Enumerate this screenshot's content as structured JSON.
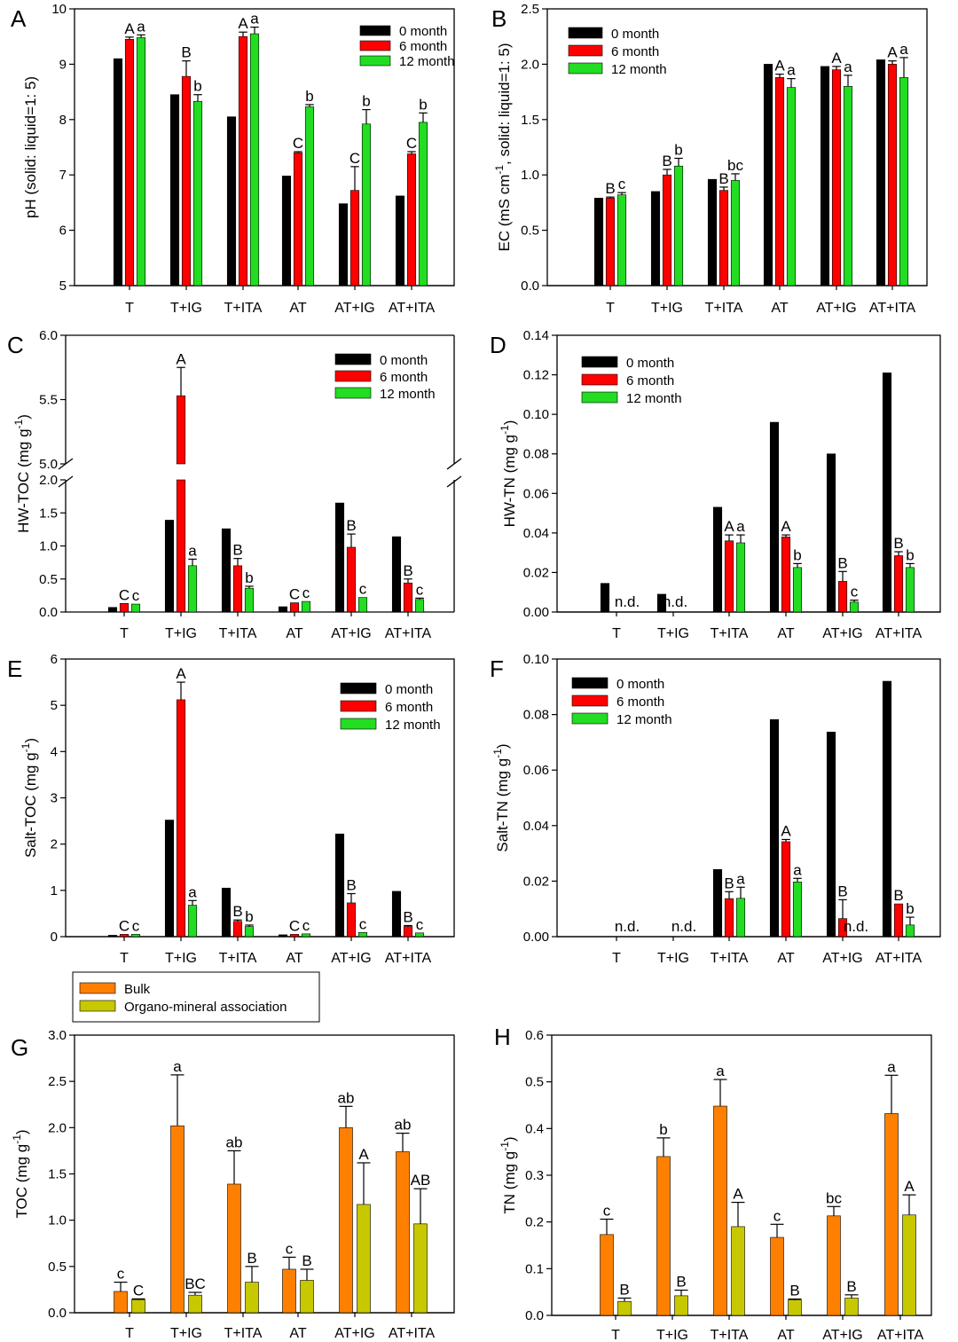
{
  "colors": {
    "month0": "#000000",
    "month6": "#ff0000",
    "month12": "#22dd22",
    "bulk": "#ff8000",
    "oma": "#c8c800"
  },
  "categories": [
    "T",
    "T+IG",
    "T+ITA",
    "AT",
    "AT+IG",
    "AT+ITA"
  ],
  "chart_data": [
    {
      "panel": "A",
      "type": "bar",
      "ylabel": "pH (solid: liquid=1: 5)",
      "ylim": [
        5,
        10
      ],
      "yticks": [
        "5",
        "6",
        "7",
        "8",
        "9",
        "10"
      ],
      "legend": [
        "0 month",
        "6 month",
        "12 month"
      ],
      "legend_position": "top-right",
      "series": [
        {
          "name": "0 month",
          "values": [
            9.1,
            8.45,
            8.05,
            6.98,
            6.48,
            6.62
          ],
          "err": [
            0,
            0,
            0,
            0,
            0,
            0
          ],
          "labels": [
            "",
            "",
            "",
            "",
            "",
            ""
          ]
        },
        {
          "name": "6 month",
          "values": [
            9.45,
            8.78,
            9.5,
            7.4,
            6.72,
            7.38
          ],
          "err": [
            0.04,
            0.28,
            0.08,
            0.02,
            0.43,
            0.04
          ],
          "labels": [
            "A",
            "B",
            "A",
            "C",
            "C",
            "C"
          ]
        },
        {
          "name": "12 month",
          "values": [
            9.48,
            8.33,
            9.55,
            8.23,
            7.92,
            7.95
          ],
          "err": [
            0.05,
            0.12,
            0.12,
            0.04,
            0.26,
            0.17
          ],
          "labels": [
            "a",
            "b",
            "a",
            "b",
            "b",
            "b"
          ]
        }
      ]
    },
    {
      "panel": "B",
      "type": "bar",
      "ylabel": "EC (mS cm-1, solid: liquid=1: 5)",
      "ylim": [
        0,
        2.5
      ],
      "yticks": [
        "0.0",
        "0.5",
        "1.0",
        "1.5",
        "2.0",
        "2.5"
      ],
      "legend": [
        "0 month",
        "6 month",
        "12 month"
      ],
      "legend_position": "top-left",
      "series": [
        {
          "name": "0 month",
          "values": [
            0.79,
            0.85,
            0.96,
            2.0,
            1.98,
            2.04
          ],
          "err": [
            0,
            0,
            0,
            0,
            0,
            0
          ],
          "labels": [
            "",
            "",
            "",
            "",
            "",
            ""
          ]
        },
        {
          "name": "6 month",
          "values": [
            0.79,
            1.0,
            0.86,
            1.88,
            1.95,
            2.0
          ],
          "err": [
            0.01,
            0.05,
            0.03,
            0.03,
            0.03,
            0.03
          ],
          "labels": [
            "B",
            "B",
            "B",
            "A",
            "A",
            "A"
          ]
        },
        {
          "name": "12 month",
          "values": [
            0.82,
            1.08,
            0.95,
            1.79,
            1.8,
            1.88
          ],
          "err": [
            0.02,
            0.07,
            0.06,
            0.08,
            0.1,
            0.18
          ],
          "labels": [
            "c",
            "b",
            "bc",
            "a",
            "a",
            "a"
          ]
        }
      ]
    },
    {
      "panel": "C",
      "type": "bar",
      "ylabel": "HW-TOC (mg g-1)",
      "ylim": [
        0,
        6.0
      ],
      "axis_break": [
        2.0,
        5.0
      ],
      "yticks_lower": [
        "0.0",
        "0.5",
        "1.0",
        "1.5",
        "2.0"
      ],
      "yticks_upper": [
        "5.0",
        "5.5",
        "6.0"
      ],
      "legend": [
        "0 month",
        "6 month",
        "12 month"
      ],
      "legend_position": "top-right",
      "series": [
        {
          "name": "0 month",
          "values": [
            0.07,
            1.39,
            1.26,
            0.08,
            1.65,
            1.14
          ],
          "err": [
            0,
            0,
            0,
            0,
            0,
            0
          ],
          "labels": [
            "",
            "",
            "",
            "",
            "",
            ""
          ]
        },
        {
          "name": "6 month",
          "values": [
            0.13,
            5.53,
            0.7,
            0.14,
            0.98,
            0.44
          ],
          "err": [
            0,
            0.22,
            0.11,
            0,
            0.2,
            0.06
          ],
          "labels": [
            "C",
            "A",
            "B",
            "C",
            "B",
            "B"
          ]
        },
        {
          "name": "12 month",
          "values": [
            0.12,
            0.7,
            0.36,
            0.16,
            0.22,
            0.19
          ],
          "err": [
            0,
            0.1,
            0.03,
            0,
            0,
            0.02
          ],
          "labels": [
            "c",
            "a",
            "b",
            "c",
            "c",
            "c"
          ]
        }
      ]
    },
    {
      "panel": "D",
      "type": "bar",
      "ylabel": "HW-TN (mg g-1)",
      "ylim": [
        0,
        0.14
      ],
      "yticks": [
        "0.00",
        "0.02",
        "0.04",
        "0.06",
        "0.08",
        "0.10",
        "0.12",
        "0.14"
      ],
      "legend": [
        "0 month",
        "6 month",
        "12 month"
      ],
      "legend_position": "top-left",
      "not_detected": [
        "n.d.",
        "",
        "",
        "",
        "",
        ""
      ],
      "series": [
        {
          "name": "0 month",
          "values": [
            0.0145,
            0.009,
            0.053,
            0.096,
            0.08,
            0.121
          ],
          "err": [
            0,
            0,
            0,
            0,
            0,
            0
          ],
          "labels": [
            "",
            "",
            "",
            "",
            "",
            ""
          ]
        },
        {
          "name": "6 month",
          "values": [
            null,
            null,
            0.036,
            0.038,
            0.0155,
            0.0285
          ],
          "err": [
            0,
            0,
            0.003,
            0.001,
            0.005,
            0.002
          ],
          "labels": [
            "",
            "n.d.",
            "A",
            "A",
            "B",
            "B"
          ]
        },
        {
          "name": "12 month",
          "values": [
            null,
            null,
            0.035,
            0.0225,
            0.005,
            0.0225
          ],
          "err": [
            0,
            0,
            0.004,
            0.002,
            0.001,
            0.002
          ],
          "labels": [
            "",
            "",
            "a",
            "b",
            "c",
            "b"
          ]
        }
      ]
    },
    {
      "panel": "E",
      "type": "bar",
      "ylabel": "Salt-TOC (mg g-1)",
      "ylim": [
        0,
        6
      ],
      "yticks": [
        "0",
        "1",
        "2",
        "3",
        "4",
        "5",
        "6"
      ],
      "legend": [
        "0 month",
        "6 month",
        "12 month"
      ],
      "legend_position": "top-right",
      "series": [
        {
          "name": "0 month",
          "values": [
            0.03,
            2.52,
            1.05,
            0.04,
            2.22,
            0.98
          ],
          "err": [
            0,
            0,
            0,
            0,
            0,
            0
          ],
          "labels": [
            "",
            "",
            "",
            "",
            "",
            ""
          ]
        },
        {
          "name": "6 month",
          "values": [
            0.05,
            5.12,
            0.33,
            0.05,
            0.73,
            0.22
          ],
          "err": [
            0,
            0.38,
            0.03,
            0,
            0.2,
            0.02
          ],
          "labels": [
            "C",
            "A",
            "B",
            "C",
            "B",
            "B"
          ]
        },
        {
          "name": "12 month",
          "values": [
            0.05,
            0.68,
            0.22,
            0.06,
            0.09,
            0.08
          ],
          "err": [
            0,
            0.1,
            0.03,
            0,
            0,
            0
          ],
          "labels": [
            "c",
            "a",
            "b",
            "c",
            "c",
            "c"
          ]
        }
      ]
    },
    {
      "panel": "F",
      "type": "bar",
      "ylabel": "Salt-TN (mg g-1)",
      "ylim": [
        0,
        0.1
      ],
      "yticks": [
        "0.00",
        "0.02",
        "0.04",
        "0.06",
        "0.08",
        "0.10"
      ],
      "legend": [
        "0 month",
        "6 month",
        "12 month"
      ],
      "legend_position": "top-left",
      "not_detected": [
        "n.d.",
        "n.d.",
        "",
        "",
        "",
        ""
      ],
      "series": [
        {
          "name": "0 month",
          "values": [
            null,
            null,
            0.0242,
            0.0782,
            0.0737,
            0.092
          ],
          "err": [
            0,
            0,
            0,
            0,
            0,
            0
          ],
          "labels": [
            "",
            "",
            "",
            "",
            "",
            ""
          ]
        },
        {
          "name": "6 month",
          "values": [
            null,
            null,
            0.0137,
            0.0342,
            0.0065,
            0.0118
          ],
          "err": [
            0,
            0,
            0.0025,
            0.0008,
            0.0068,
            0
          ],
          "labels": [
            "",
            "",
            "B",
            "A",
            "B",
            "B"
          ]
        },
        {
          "name": "12 month",
          "values": [
            null,
            null,
            0.0138,
            0.0197,
            null,
            0.0042
          ],
          "err": [
            0,
            0,
            0.004,
            0.0013,
            0,
            0.0028
          ],
          "labels": [
            "",
            "",
            "a",
            "a",
            "n.d.",
            "b"
          ]
        }
      ]
    },
    {
      "panel": "G",
      "type": "bar",
      "ylabel": "TOC (mg g-1)",
      "ylim": [
        0,
        3.0
      ],
      "yticks": [
        "0.0",
        "0.5",
        "1.0",
        "1.5",
        "2.0",
        "2.5",
        "3.0"
      ],
      "legend": [
        "Bulk",
        "Organo-mineral association"
      ],
      "legend_position": "top-left",
      "series": [
        {
          "name": "Bulk",
          "values": [
            0.23,
            2.02,
            1.39,
            0.47,
            2.0,
            1.74
          ],
          "err": [
            0.1,
            0.55,
            0.36,
            0.13,
            0.23,
            0.2
          ],
          "labels": [
            "c",
            "a",
            "ab",
            "c",
            "ab",
            "ab"
          ]
        },
        {
          "name": "Organo-mineral association",
          "values": [
            0.14,
            0.19,
            0.33,
            0.35,
            1.17,
            0.96
          ],
          "err": [
            0.01,
            0.03,
            0.17,
            0.12,
            0.45,
            0.38
          ],
          "labels": [
            "C",
            "BC",
            "B",
            "B",
            "A",
            "AB"
          ]
        }
      ]
    },
    {
      "panel": "H",
      "type": "bar",
      "ylabel": "TN (mg g-1)",
      "ylim": [
        0,
        0.6
      ],
      "yticks": [
        "0.0",
        "0.1",
        "0.2",
        "0.3",
        "0.4",
        "0.5",
        "0.6"
      ],
      "legend": [],
      "series": [
        {
          "name": "Bulk",
          "values": [
            0.173,
            0.34,
            0.448,
            0.167,
            0.213,
            0.432
          ],
          "err": [
            0.033,
            0.04,
            0.057,
            0.028,
            0.02,
            0.082
          ],
          "labels": [
            "c",
            "b",
            "a",
            "c",
            "bc",
            "a"
          ]
        },
        {
          "name": "Organo-mineral association",
          "values": [
            0.03,
            0.042,
            0.19,
            0.033,
            0.037,
            0.215
          ],
          "err": [
            0.007,
            0.012,
            0.052,
            0.002,
            0.007,
            0.043
          ],
          "labels": [
            "B",
            "B",
            "A",
            "B",
            "B",
            "A"
          ]
        }
      ]
    }
  ]
}
